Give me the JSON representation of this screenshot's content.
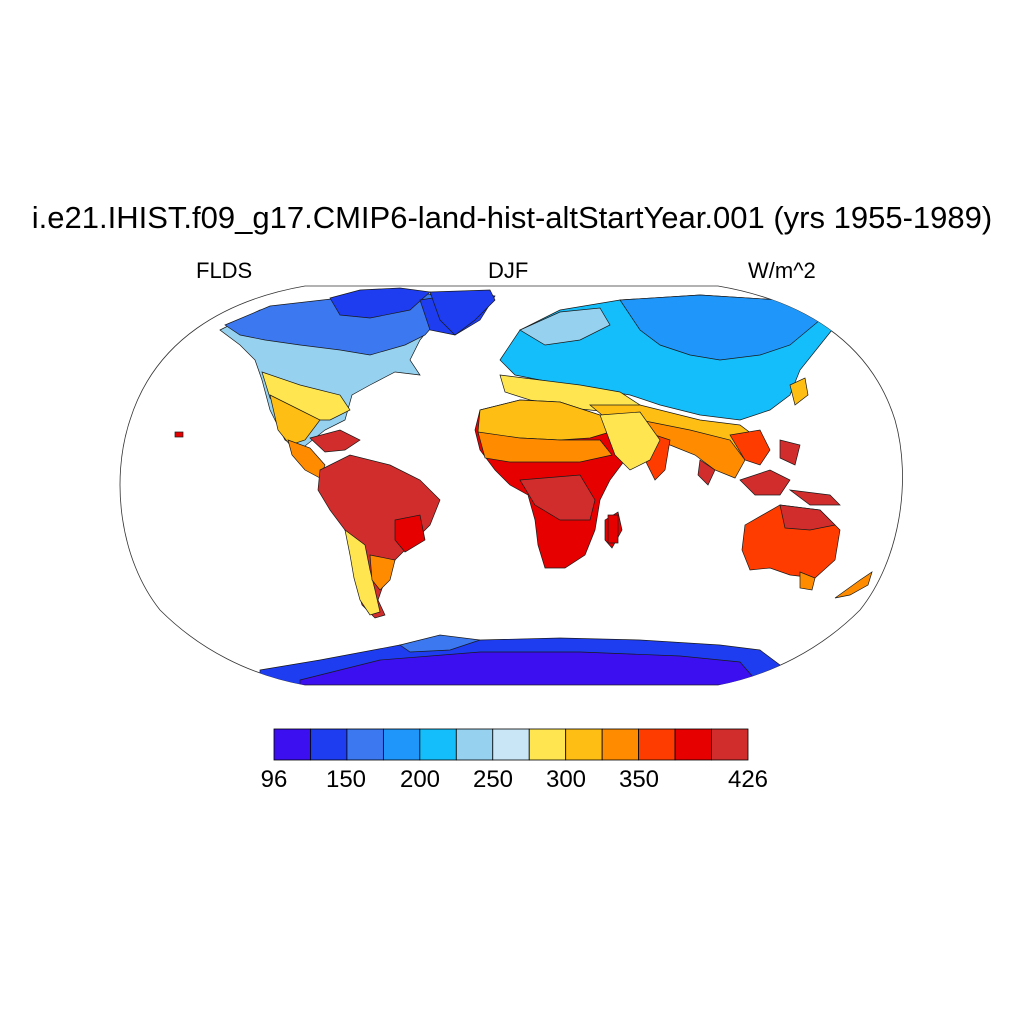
{
  "title": "i.e21.IHIST.f09_g17.CMIP6-land-hist-altStartYear.001 (yrs 1955-1989)",
  "left_label": "FLDS",
  "center_label": "DJF",
  "right_label": "W/m^2",
  "projection": "Robinson",
  "colorbar": {
    "colors": [
      "#3c0ff0",
      "#1e3cf0",
      "#3c78f0",
      "#1e96fa",
      "#14befa",
      "#96d2f0",
      "#c8e6f5",
      "#ffe650",
      "#ffbe14",
      "#ff8c00",
      "#ff3c00",
      "#e60000",
      "#d22d2d"
    ],
    "tick_labels": [
      "96",
      "150",
      "200",
      "250",
      "300",
      "350",
      "426"
    ]
  },
  "colors": {
    "coast": "#1a1a1a",
    "ocean": "#ffffff",
    "frame": "#333333"
  }
}
